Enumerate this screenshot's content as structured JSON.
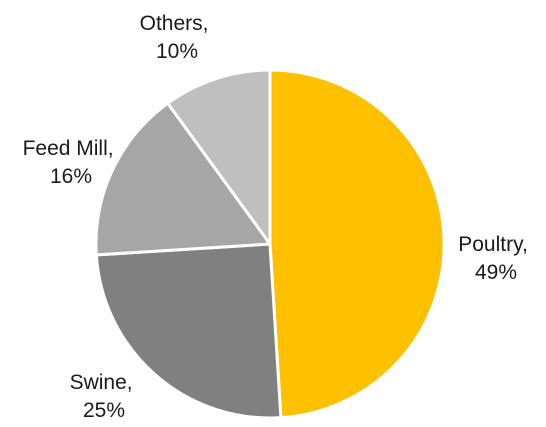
{
  "chart_data": {
    "type": "pie",
    "start_angle_deg": 0,
    "direction": "clockwise",
    "legend": "none",
    "slices": [
      {
        "label": "Poultry",
        "value": 49,
        "color": "#FFC000"
      },
      {
        "label": "Swine",
        "value": 25,
        "color": "#808080"
      },
      {
        "label": "Feed Mill",
        "value": 16,
        "color": "#A6A6A6"
      },
      {
        "label": "Others",
        "value": 10,
        "color": "#BFBFBF"
      }
    ],
    "data_labels": [
      {
        "name": "Poultry,",
        "value": "49%"
      },
      {
        "name": "Swine,",
        "value": "25%"
      },
      {
        "name": "Feed Mill,",
        "value": "16%"
      },
      {
        "name": "Others,",
        "value": "10%"
      }
    ]
  }
}
